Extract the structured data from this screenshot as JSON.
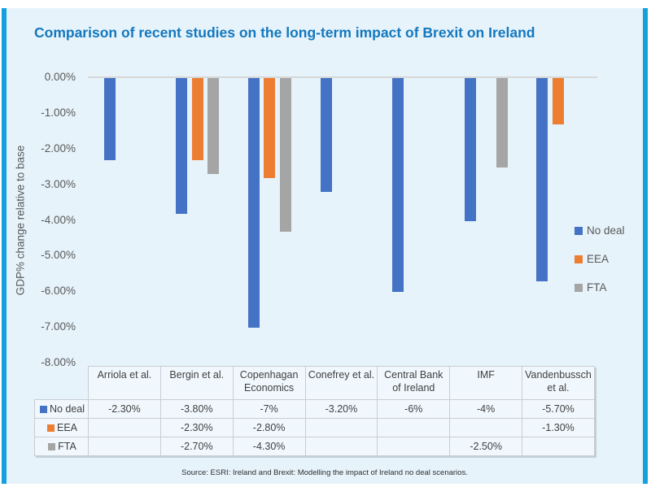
{
  "panel": {
    "title": "Comparison of recent studies on the long-term impact of Brexit on Ireland",
    "source": "Source: ESRI: Ireland and Brexit: Modelling the impact of Ireland no deal scenarios.",
    "background_color": "#E6F3FB",
    "accent_stripe_color": "#13A0DC",
    "title_color": "#1378BE"
  },
  "chart_data": {
    "type": "bar",
    "orientation": "vertical-negative",
    "title": "Comparison of recent studies on the long-term impact of Brexit on Ireland",
    "xlabel": "",
    "ylabel": "GDP% change relative to base",
    "ylim": [
      -8,
      0
    ],
    "y_ticks": [
      "0.00%",
      "-1.00%",
      "-2.00%",
      "-3.00%",
      "-4.00%",
      "-5.00%",
      "-6.00%",
      "-7.00%",
      "-8.00%"
    ],
    "grid": "zero-line-only",
    "legend_position": "right",
    "data_table_shown": true,
    "categories": [
      "Arriola et al.",
      "Bergin et al.",
      "Copenhagan Economics",
      "Conefrey et al.",
      "Central Bank of Ireland",
      "IMF",
      "Vandenbussch et al."
    ],
    "series": [
      {
        "name": "No deal",
        "color": "#4472C4",
        "values": [
          -2.3,
          -3.8,
          -7,
          -3.2,
          -6,
          -4,
          -5.7
        ],
        "labels": [
          "-2.30%",
          "-3.80%",
          "-7%",
          "-3.20%",
          "-6%",
          "-4%",
          "-5.70%"
        ]
      },
      {
        "name": "EEA",
        "color": "#ED7D31",
        "values": [
          null,
          -2.3,
          -2.8,
          null,
          null,
          null,
          -1.3
        ],
        "labels": [
          "",
          "-2.30%",
          "-2.80%",
          "",
          "",
          "",
          "-1.30%"
        ]
      },
      {
        "name": "FTA",
        "color": "#A5A5A5",
        "values": [
          null,
          -2.7,
          -4.3,
          null,
          null,
          -2.5,
          null
        ],
        "labels": [
          "",
          "-2.70%",
          "-4.30%",
          "",
          "",
          "-2.50%",
          ""
        ]
      }
    ]
  }
}
